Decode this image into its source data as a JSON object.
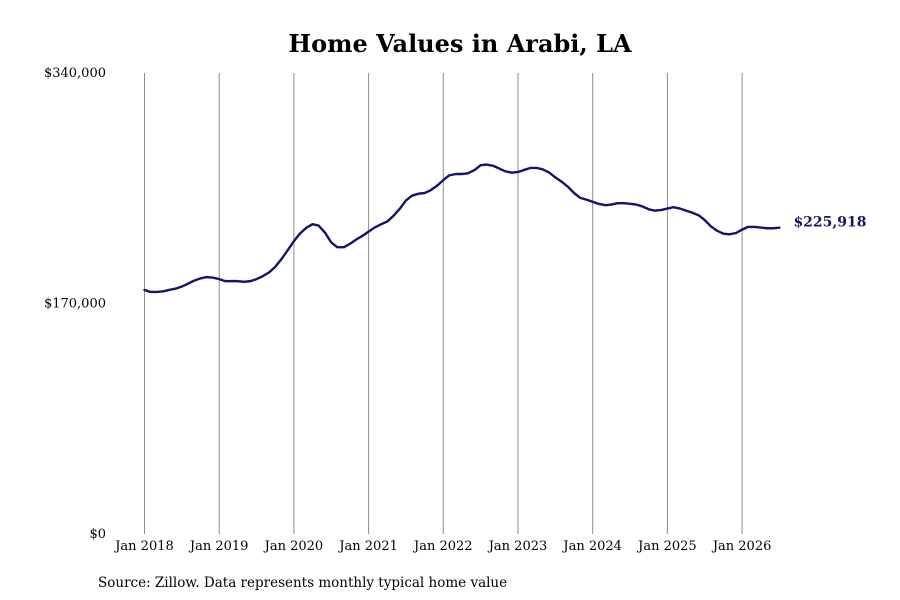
{
  "chart_data": {
    "type": "line",
    "title": "Home Values in Arabi, LA",
    "xlabel": "",
    "ylabel": "",
    "ylim": [
      0,
      340000
    ],
    "y_ticks": [
      {
        "value": 340000,
        "label": "$340,000"
      },
      {
        "value": 170000,
        "label": "$170,000"
      },
      {
        "value": 0,
        "label": "$0"
      }
    ],
    "x_ticks": [
      {
        "value": 2018.0,
        "label": "Jan 2018"
      },
      {
        "value": 2019.0,
        "label": "Jan 2019"
      },
      {
        "value": 2020.0,
        "label": "Jan 2020"
      },
      {
        "value": 2021.0,
        "label": "Jan 2021"
      },
      {
        "value": 2022.0,
        "label": "Jan 2022"
      },
      {
        "value": 2023.0,
        "label": "Jan 2023"
      },
      {
        "value": 2024.0,
        "label": "Jan 2024"
      },
      {
        "value": 2025.0,
        "label": "Jan 2025"
      },
      {
        "value": 2026.0,
        "label": "Jan 2026"
      }
    ],
    "grid": "vertical",
    "line_color": "#14146b",
    "end_label": "$225,918",
    "x_format": "decimal year (Jan 2018 = 2018.0)",
    "series": [
      {
        "x": [
          2018.0,
          2018.08,
          2018.17,
          2018.25,
          2018.33,
          2018.42,
          2018.5,
          2018.58,
          2018.67,
          2018.75,
          2018.83,
          2018.92,
          2019.0,
          2019.08,
          2019.17,
          2019.25,
          2019.33,
          2019.42,
          2019.5,
          2019.58,
          2019.67,
          2019.75,
          2019.83,
          2019.92,
          2020.0,
          2020.08,
          2020.17,
          2020.25,
          2020.33,
          2020.42,
          2020.5,
          2020.58,
          2020.67,
          2020.75,
          2020.83,
          2020.92,
          2021.0,
          2021.08,
          2021.17,
          2021.25,
          2021.33,
          2021.42,
          2021.5,
          2021.58,
          2021.67,
          2021.75,
          2021.83,
          2021.92,
          2022.0,
          2022.08,
          2022.17,
          2022.25,
          2022.33,
          2022.42,
          2022.5,
          2022.58,
          2022.67,
          2022.75,
          2022.83,
          2022.92,
          2023.0,
          2023.08,
          2023.17,
          2023.25,
          2023.33,
          2023.42,
          2023.5,
          2023.58,
          2023.67,
          2023.75,
          2023.83,
          2023.92,
          2024.0,
          2024.08,
          2024.17,
          2024.25,
          2024.33,
          2024.42,
          2024.5,
          2024.58,
          2024.67,
          2024.75,
          2024.83,
          2024.92,
          2025.0,
          2025.08,
          2025.17,
          2025.25,
          2025.33,
          2025.42,
          2025.5,
          2025.58,
          2025.67,
          2025.75,
          2025.83,
          2025.92,
          2026.0,
          2026.08,
          2026.17,
          2026.25,
          2026.33,
          2026.42,
          2026.5
        ],
        "values": [
          180000,
          178500,
          178500,
          179000,
          180000,
          181000,
          182500,
          184500,
          187000,
          188500,
          189500,
          189000,
          188000,
          186500,
          186500,
          186500,
          186000,
          186500,
          188000,
          190000,
          193000,
          197000,
          202500,
          209500,
          216000,
          221500,
          226000,
          228500,
          227500,
          222000,
          215000,
          211500,
          211500,
          214000,
          217000,
          220000,
          223000,
          226000,
          228500,
          230500,
          234500,
          240000,
          246000,
          249500,
          251000,
          251500,
          253500,
          257000,
          261000,
          264500,
          265500,
          265500,
          266000,
          268500,
          272000,
          272500,
          271500,
          269500,
          267500,
          266500,
          267000,
          268500,
          270000,
          270000,
          269000,
          266500,
          263000,
          260000,
          256000,
          251500,
          248000,
          246500,
          245000,
          243500,
          242500,
          243000,
          244000,
          244000,
          243500,
          243000,
          241500,
          239500,
          238500,
          239000,
          240000,
          241000,
          240000,
          238500,
          237000,
          235000,
          231500,
          227000,
          223500,
          221500,
          221000,
          222000,
          224500,
          226500,
          226500,
          226000,
          225500,
          225500,
          225918
        ]
      }
    ]
  },
  "footer": {
    "source": "Source: Zillow. Data represents monthly typical home value"
  }
}
